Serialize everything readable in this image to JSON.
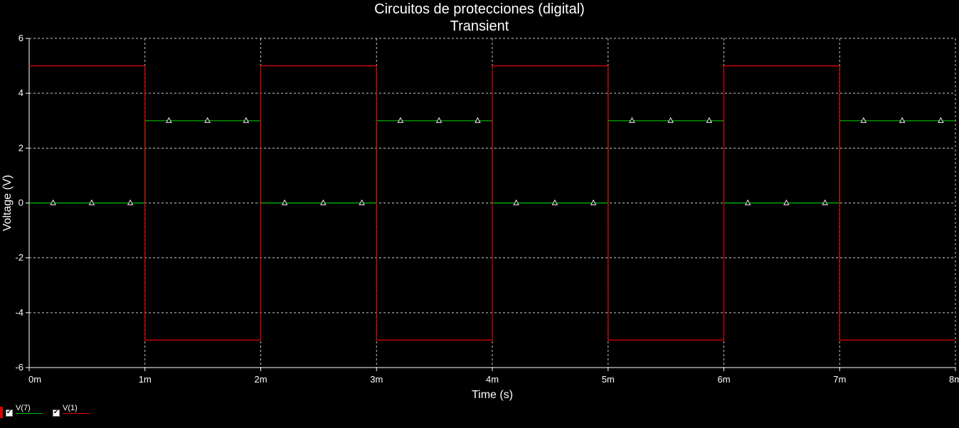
{
  "chart_data": {
    "type": "line",
    "title": "Circuitos de protecciones (digital)",
    "subtitle": "Transient",
    "xlabel": "Time (s)",
    "ylabel": "Voltage (V)",
    "xlim": [
      0,
      8
    ],
    "ylim": [
      -6,
      6
    ],
    "x_unit_suffix": "m",
    "xticks": [
      "0m",
      "1m",
      "2m",
      "3m",
      "4m",
      "5m",
      "6m",
      "7m",
      "8m"
    ],
    "yticks": [
      "6",
      "4",
      "2",
      "0",
      "-2",
      "-4",
      "-6"
    ],
    "grid": true,
    "legend_position": "bottom-left",
    "series": [
      {
        "name": "V(7)",
        "color": "#00c000",
        "markers": true,
        "x": [
          0,
          1,
          1,
          2,
          2,
          3,
          3,
          4,
          4,
          5,
          5,
          6,
          6,
          7,
          7,
          8
        ],
        "y": [
          0,
          0,
          3,
          3,
          0,
          0,
          3,
          3,
          0,
          0,
          3,
          3,
          0,
          0,
          3,
          3
        ]
      },
      {
        "name": "V(1)",
        "color": "#e00000",
        "markers": false,
        "x": [
          0,
          1,
          1,
          2,
          2,
          3,
          3,
          4,
          4,
          5,
          5,
          6,
          6,
          7,
          7,
          8
        ],
        "y": [
          5,
          5,
          -5,
          -5,
          5,
          5,
          -5,
          -5,
          5,
          5,
          -5,
          -5,
          5,
          5,
          -5,
          -5
        ]
      }
    ]
  }
}
